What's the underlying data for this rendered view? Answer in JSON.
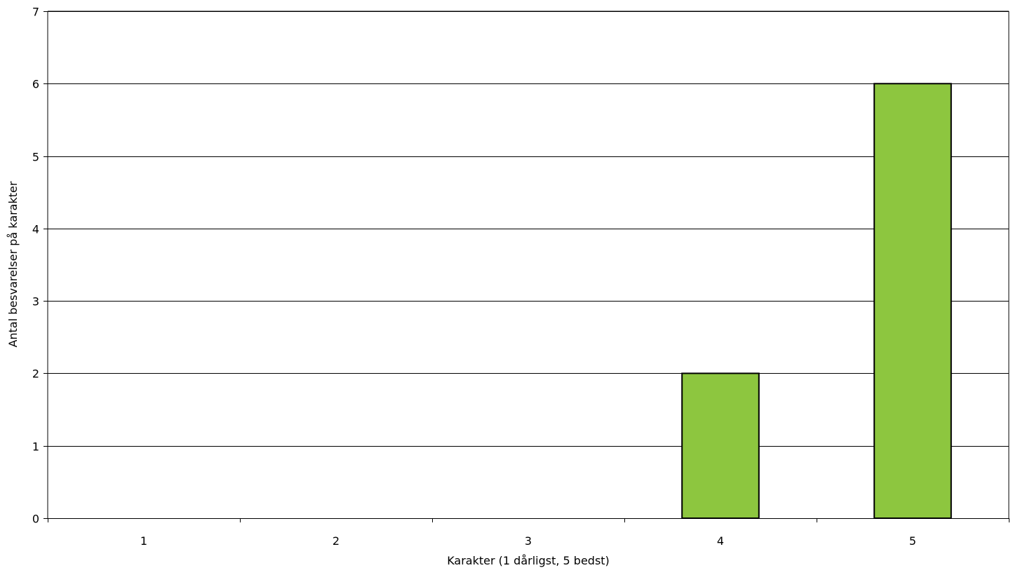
{
  "chart_data": {
    "type": "bar",
    "title": "",
    "xlabel": "Karakter (1 dårligst, 5 bedst)",
    "ylabel": "Antal besvarelser på karakter",
    "categories": [
      "1",
      "2",
      "3",
      "4",
      "5"
    ],
    "values": [
      0,
      0,
      0,
      2,
      6
    ],
    "ylim": [
      0,
      7
    ],
    "yticks": [
      0,
      1,
      2,
      3,
      4,
      5,
      6,
      7
    ],
    "grid": true,
    "legend": "none",
    "bar_color": "#8dc63f",
    "bar_edge_color": "#000000"
  }
}
